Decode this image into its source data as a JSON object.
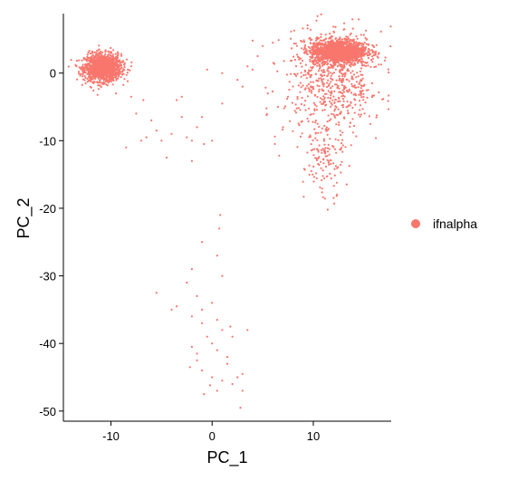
{
  "chart_data": {
    "type": "scatter",
    "title": "",
    "xlabel": "PC_1",
    "ylabel": "PC_2",
    "xlim": [
      -14.7,
      17.7
    ],
    "ylim": [
      -51.5,
      8.8
    ],
    "x_ticks": [
      -10,
      0,
      10
    ],
    "y_ticks": [
      0,
      -10,
      -20,
      -30,
      -40,
      -50
    ],
    "grid": false,
    "legend_position": "right",
    "point_color": "#F8766D",
    "series": [
      {
        "name": "ifnalpha",
        "color": "#F8766D",
        "clusters": [
          {
            "center": [
              -10.8,
              0.8
            ],
            "spread": [
              0.9,
              1.0
            ],
            "count": 1400
          },
          {
            "center": [
              12.5,
              3.2
            ],
            "spread": [
              1.4,
              0.9
            ],
            "count": 1400
          },
          {
            "center": [
              12.0,
              -1.5
            ],
            "spread": [
              2.4,
              4.0
            ],
            "count": 600
          },
          {
            "center": [
              11.0,
              -13.0
            ],
            "spread": [
              1.0,
              3.0
            ],
            "count": 120
          }
        ],
        "outliers": [
          [
            -12.5,
            -1.5
          ],
          [
            -9.5,
            -3.0
          ],
          [
            -8.0,
            -3.5
          ],
          [
            -7.5,
            -6.0
          ],
          [
            -6.8,
            -4.0
          ],
          [
            -6.0,
            -7.0
          ],
          [
            -5.5,
            -8.5
          ],
          [
            -5.0,
            -10.0
          ],
          [
            -4.5,
            -12.5
          ],
          [
            -4.0,
            -9.0
          ],
          [
            -3.5,
            -4.0
          ],
          [
            -3.0,
            -6.5
          ],
          [
            -2.5,
            -9.5
          ],
          [
            -2.0,
            -10.0
          ],
          [
            -1.5,
            -8.0
          ],
          [
            -1.0,
            -6.5
          ],
          [
            -0.8,
            -10.5
          ],
          [
            0.0,
            -10.0
          ],
          [
            -2.0,
            -13.0
          ],
          [
            -8.5,
            -11.0
          ],
          [
            -7.0,
            -10.0
          ],
          [
            -6.5,
            -9.5
          ],
          [
            -0.5,
            0.5
          ],
          [
            1.0,
            -4.5
          ],
          [
            3.0,
            -2.0
          ],
          [
            3.5,
            1.0
          ],
          [
            4.0,
            0.5
          ],
          [
            4.5,
            2.5
          ],
          [
            5.0,
            4.0
          ],
          [
            6.0,
            4.5
          ],
          [
            5.5,
            -3.0
          ],
          [
            6.5,
            -5.0
          ],
          [
            7.0,
            -8.0
          ],
          [
            6.2,
            -10.5
          ],
          [
            7.5,
            -3.5
          ],
          [
            4.0,
            4.8
          ],
          [
            2.5,
            -1.0
          ],
          [
            -8.0,
            1.0
          ],
          [
            -3.0,
            -3.5
          ],
          [
            1.0,
            0.0
          ],
          [
            0.8,
            -21.0
          ],
          [
            0.7,
            -23.0
          ],
          [
            -1.0,
            -25.0
          ],
          [
            0.5,
            -27.0
          ],
          [
            -2.0,
            -29.0
          ],
          [
            1.0,
            -30.0
          ],
          [
            -2.5,
            -31.0
          ],
          [
            -1.5,
            -33.0
          ],
          [
            0.0,
            -34.0
          ],
          [
            -1.0,
            -35.0
          ],
          [
            -5.5,
            -32.5
          ],
          [
            -4.0,
            -35.0
          ],
          [
            -3.5,
            -34.5
          ],
          [
            -2.0,
            -36.0
          ],
          [
            -1.0,
            -37.0
          ],
          [
            0.5,
            -36.5
          ],
          [
            1.0,
            -38.0
          ],
          [
            -0.5,
            -39.0
          ],
          [
            0.0,
            -40.0
          ],
          [
            -2.0,
            -40.5
          ],
          [
            -1.5,
            -41.5
          ],
          [
            0.5,
            -41.0
          ],
          [
            1.5,
            -42.0
          ],
          [
            2.0,
            -39.0
          ],
          [
            -2.2,
            -43.5
          ],
          [
            -1.0,
            -44.0
          ],
          [
            0.0,
            -45.0
          ],
          [
            -0.2,
            -46.2
          ],
          [
            1.0,
            -45.5
          ],
          [
            2.5,
            -45.0
          ],
          [
            3.0,
            -44.5
          ],
          [
            2.0,
            -46.0
          ],
          [
            -0.8,
            -47.5
          ],
          [
            0.5,
            -47.0
          ],
          [
            3.0,
            -47.0
          ],
          [
            2.8,
            -49.5
          ],
          [
            1.5,
            -43.0
          ],
          [
            -1.5,
            -42.5
          ],
          [
            1.8,
            -37.5
          ],
          [
            3.5,
            -38.0
          ]
        ]
      }
    ]
  }
}
